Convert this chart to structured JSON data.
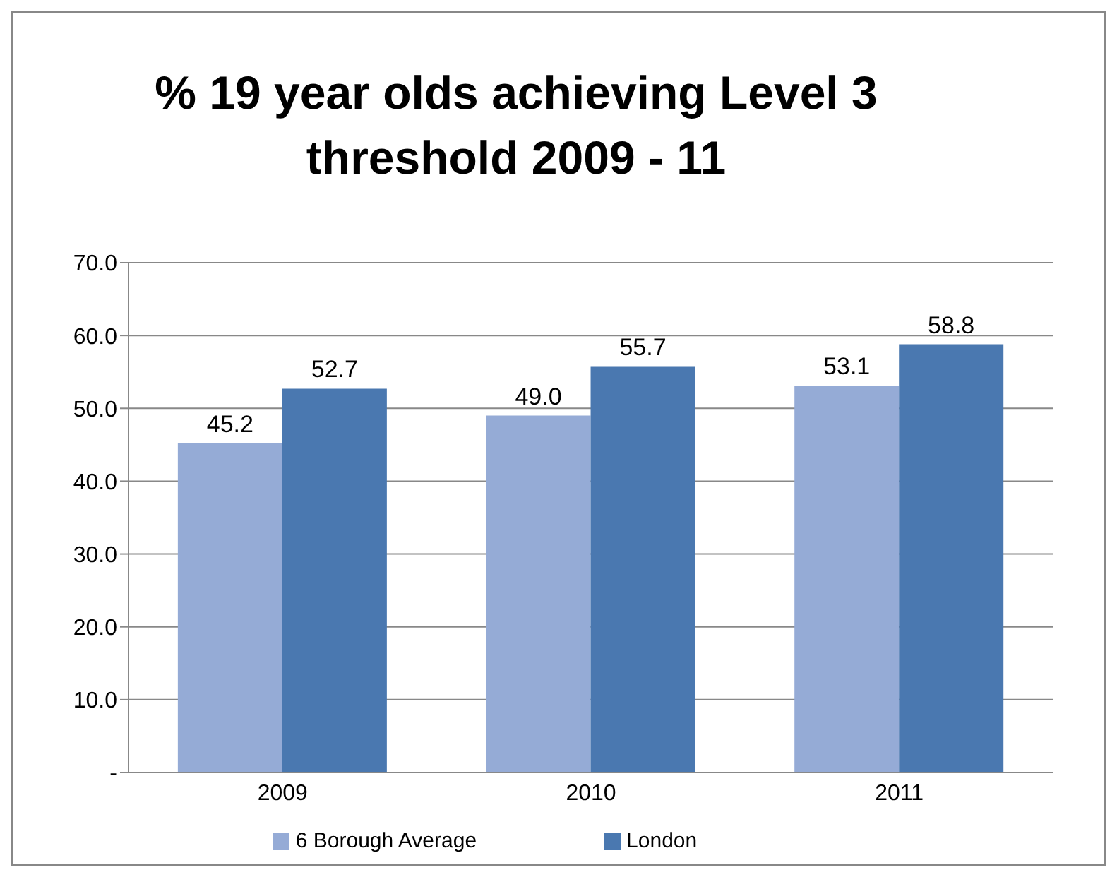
{
  "chart_data": {
    "type": "bar",
    "title": "% 19 year olds achieving Level 3 threshold  2009 - 11",
    "categories": [
      "2009",
      "2010",
      "2011"
    ],
    "series": [
      {
        "name": "6 Borough Average",
        "color": "#95abd6",
        "values": [
          45.2,
          49.0,
          53.1
        ],
        "value_labels": [
          "45.2",
          "49.0",
          "53.1"
        ]
      },
      {
        "name": "London",
        "color": "#4a78b0",
        "values": [
          52.7,
          55.7,
          58.8
        ],
        "value_labels": [
          "52.7",
          "55.7",
          "58.8"
        ]
      }
    ],
    "ylim": [
      0,
      70
    ],
    "yticks": [
      {
        "value": 0,
        "label": "-"
      },
      {
        "value": 10,
        "label": "10.0"
      },
      {
        "value": 20,
        "label": "20.0"
      },
      {
        "value": 30,
        "label": "30.0"
      },
      {
        "value": 40,
        "label": "40.0"
      },
      {
        "value": 50,
        "label": "50.0"
      },
      {
        "value": 60,
        "label": "60.0"
      },
      {
        "value": 70,
        "label": "70.0"
      }
    ],
    "grid": "y",
    "legend": "bottom"
  }
}
